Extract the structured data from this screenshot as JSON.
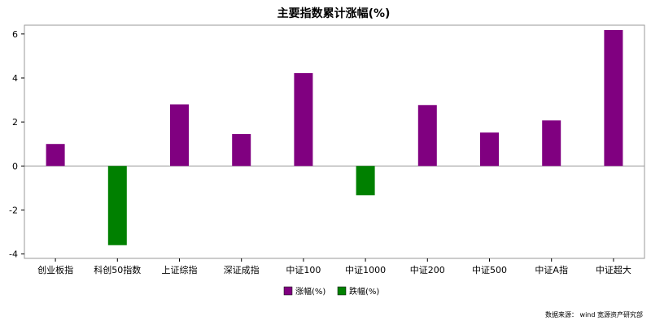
{
  "chart_data": {
    "type": "bar",
    "title": "主要指数累计涨幅(%)",
    "categories": [
      "创业板指",
      "科创50指数",
      "上证综指",
      "深证成指",
      "中证100",
      "中证1000",
      "中证200",
      "中证500",
      "中证A指",
      "中证超大"
    ],
    "values": [
      1.0,
      -3.6,
      2.8,
      1.45,
      4.22,
      -1.33,
      2.77,
      1.52,
      2.07,
      6.18
    ],
    "ylim": [
      -4.2,
      6.4
    ],
    "yticks": [
      -4,
      -2,
      0,
      2,
      4,
      6
    ],
    "xlabel": "",
    "ylabel": "",
    "legend": [
      {
        "name": "涨幅(%)",
        "color": "#800080"
      },
      {
        "name": "跌幅(%)",
        "color": "#008000"
      }
    ],
    "legend_position": "bottom-center",
    "grid": false
  },
  "source_text": "数据来源： wind 宽源资产研究部"
}
